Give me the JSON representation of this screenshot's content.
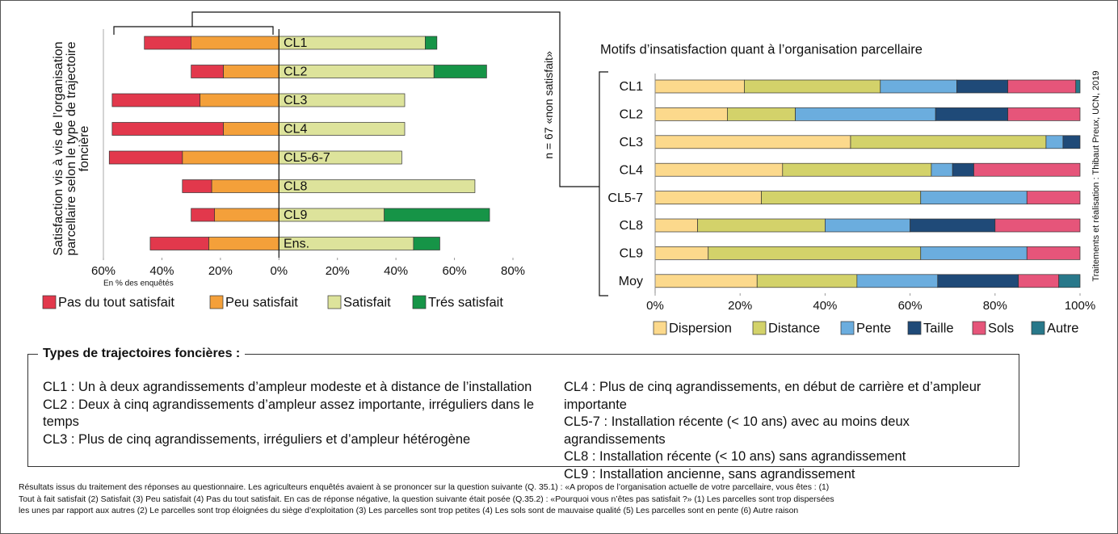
{
  "chart_data": [
    {
      "type": "bar",
      "orientation": "horizontal",
      "stacked": true,
      "y_label": "Satisfaction vis à vis de l’organisation parcellaire selon le type de trajectoire foncière",
      "x_label": "En % des enquêtés",
      "annotation": "n = 67 «non satisfait»",
      "categories": [
        "CL1",
        "CL2",
        "CL3",
        "CL4",
        "CL5-6-7",
        "CL8",
        "CL9",
        "Ens."
      ],
      "series": [
        {
          "name": "Pas du tout satisfait",
          "color": "#e2384c",
          "values": [
            -16,
            -11,
            -30,
            -38,
            -25,
            -10,
            -8,
            -20
          ]
        },
        {
          "name": "Peu satisfait",
          "color": "#f4a03a",
          "values": [
            -30,
            -19,
            -27,
            -19,
            -33,
            -23,
            -22,
            -24
          ]
        },
        {
          "name": "Satisfait",
          "color": "#dde39b",
          "values": [
            50,
            53,
            43,
            43,
            42,
            67,
            36,
            46
          ]
        },
        {
          "name": "Trés satisfait",
          "color": "#169447",
          "values": [
            4,
            18,
            0,
            0,
            0,
            0,
            36,
            9
          ]
        }
      ],
      "xlim": [
        -60,
        80
      ],
      "xticks": [
        {
          "value": -60,
          "label": "60%"
        },
        {
          "value": -40,
          "label": "40%"
        },
        {
          "value": -20,
          "label": "20%"
        },
        {
          "value": 0,
          "label": "0%"
        },
        {
          "value": 20,
          "label": "20%"
        },
        {
          "value": 40,
          "label": "40%"
        },
        {
          "value": 60,
          "label": "60%"
        },
        {
          "value": 80,
          "label": "80%"
        }
      ],
      "grid": false
    },
    {
      "type": "bar",
      "orientation": "horizontal",
      "stacked": true,
      "title": "Motifs d’insatisfaction quant à l’organisation parcellaire",
      "categories": [
        "CL1",
        "CL2",
        "CL3",
        "CL4",
        "CL5-7",
        "CL8",
        "CL9",
        "Moy"
      ],
      "series": [
        {
          "name": "Dispersion",
          "color": "#fcd98c",
          "values": [
            21,
            17,
            46,
            30,
            25,
            10,
            12.5,
            24
          ]
        },
        {
          "name": "Distance",
          "color": "#d3d26a",
          "values": [
            32,
            16,
            46,
            35,
            37.5,
            30,
            50,
            23.5
          ]
        },
        {
          "name": "Pente",
          "color": "#6badde",
          "values": [
            18,
            33,
            4,
            5,
            25,
            20,
            25,
            19
          ]
        },
        {
          "name": "Taille",
          "color": "#1f4a78",
          "values": [
            12,
            17,
            4,
            5,
            0,
            20,
            0,
            19
          ]
        },
        {
          "name": "Sols",
          "color": "#e6557a",
          "values": [
            16,
            17,
            0,
            25,
            12.5,
            20,
            12.5,
            9.5
          ]
        },
        {
          "name": "Autre",
          "color": "#28788a",
          "values": [
            1,
            0,
            0,
            0,
            0,
            0,
            0,
            5
          ]
        }
      ],
      "xlim": [
        0,
        100
      ],
      "xticks": [
        {
          "value": 0,
          "label": "0%"
        },
        {
          "value": 20,
          "label": "20%"
        },
        {
          "value": 40,
          "label": "40%"
        },
        {
          "value": 60,
          "label": "60%"
        },
        {
          "value": 80,
          "label": "80%"
        },
        {
          "value": 100,
          "label": "100%"
        }
      ],
      "grid": false
    }
  ],
  "credits": "Traitements et réalisation : Thibaut Preux, UCN, 2019",
  "types": {
    "title": "Types de trajectoires foncières :",
    "left": [
      "CL1 : Un à deux agrandissements d’ampleur modeste et à distance de l’installation",
      "CL2 : Deux à cinq agrandissements d’ampleur assez importante, irréguliers dans le temps",
      "CL3 : Plus de cinq agrandissements, irréguliers et d’ampleur hétérogène"
    ],
    "right": [
      "CL4 : Plus de cinq agrandissements, en début de carrière et d’ampleur importante",
      "CL5-7 : Installation récente (< 10 ans) avec au moins deux agrandissements",
      "CL8 : Installation récente (< 10 ans) sans agrandissement",
      "CL9 : Installation ancienne, sans agrandissement"
    ]
  },
  "footnote": [
    "Résultats issus du traitement des réponses au questionnaire. Les agriculteurs enquêtés avaient à se prononcer sur la question suivante (Q. 35.1) : «A propos de l’organisation actuelle de votre parcellaire, vous êtes :  (1)",
    "Tout à fait satisfait (2) Satisfait (3) Peu satisfait (4) Pas du tout satisfait. En cas de réponse négative, la question suivante était posée (Q.35.2) : «Pourquoi vous n’êtes pas satisfait ?» (1) Les parcelles sont trop dispersées",
    "les unes par rapport aux autres (2) Le parcelles sont trop éloignées du siège d’exploitation (3) Les parcelles sont trop petites (4) Les sols sont de mauvaise qualité (5) Les parcelles sont en pente (6) Autre raison"
  ]
}
